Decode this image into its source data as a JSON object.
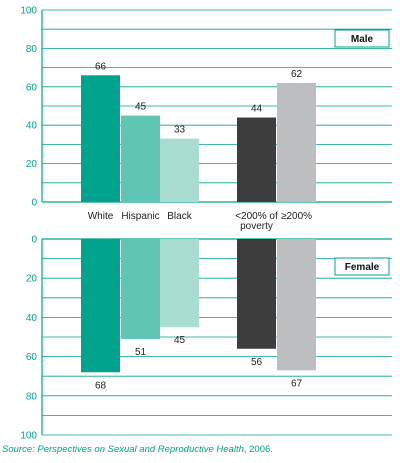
{
  "chart_data": [
    {
      "type": "bar",
      "legend": "Male",
      "categories": [
        "White",
        "Hispanic",
        "Black",
        "<200% of poverty",
        "≥200%"
      ],
      "category_lines": [
        [
          "White"
        ],
        [
          "Hispanic"
        ],
        [
          "Black"
        ],
        [
          "<200% of",
          "poverty"
        ],
        [
          "≥200%"
        ]
      ],
      "values": [
        66,
        45,
        33,
        44,
        62
      ],
      "ylim": [
        0,
        100
      ],
      "yticks": [
        "0",
        "20",
        "40",
        "60",
        "80",
        "100"
      ]
    },
    {
      "type": "bar",
      "legend": "Female",
      "categories": [
        "White",
        "Hispanic",
        "Black",
        "<200% of poverty",
        "≥200%"
      ],
      "values": [
        68,
        51,
        45,
        56,
        67
      ],
      "ylim": [
        0,
        100
      ],
      "y_inverted": true,
      "yticks": [
        "0",
        "20",
        "40",
        "60",
        "80",
        "100"
      ]
    }
  ],
  "bar_colors": [
    "#00a48e",
    "#5fc6b3",
    "#a9ddd2",
    "#3d3d3d",
    "#bdbec0"
  ],
  "accent_color": "#00a48e",
  "source": {
    "prefix": "Source: ",
    "title": "Perspectives on Sexual and Reproductive Health",
    "suffix": ", 2006."
  }
}
